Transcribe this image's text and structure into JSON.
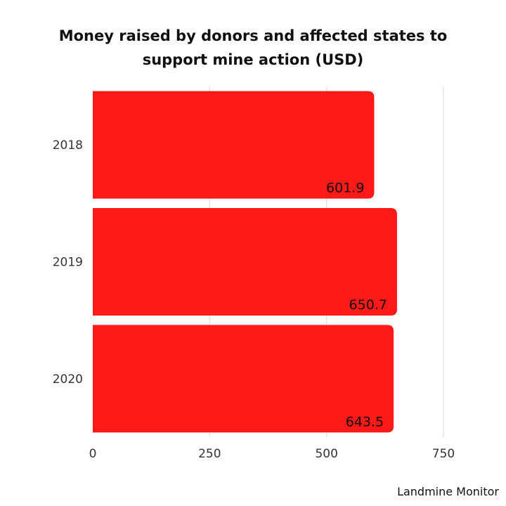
{
  "chart_data": {
    "type": "bar",
    "orientation": "horizontal",
    "title": "Money raised by donors and affected states to support mine action (USD)",
    "categories": [
      "2018",
      "2019",
      "2020"
    ],
    "values": [
      601.9,
      650.7,
      643.5
    ],
    "data_labels": [
      "601.9",
      "650.7",
      "643.5"
    ],
    "x_ticks": [
      "0",
      "250",
      "500",
      "750"
    ],
    "xlim": [
      0,
      750
    ],
    "grid": true,
    "legend": "none",
    "bar_color": "#ff1a1a",
    "grid_color": "#e3e3e3"
  },
  "source": "Landmine Monitor"
}
